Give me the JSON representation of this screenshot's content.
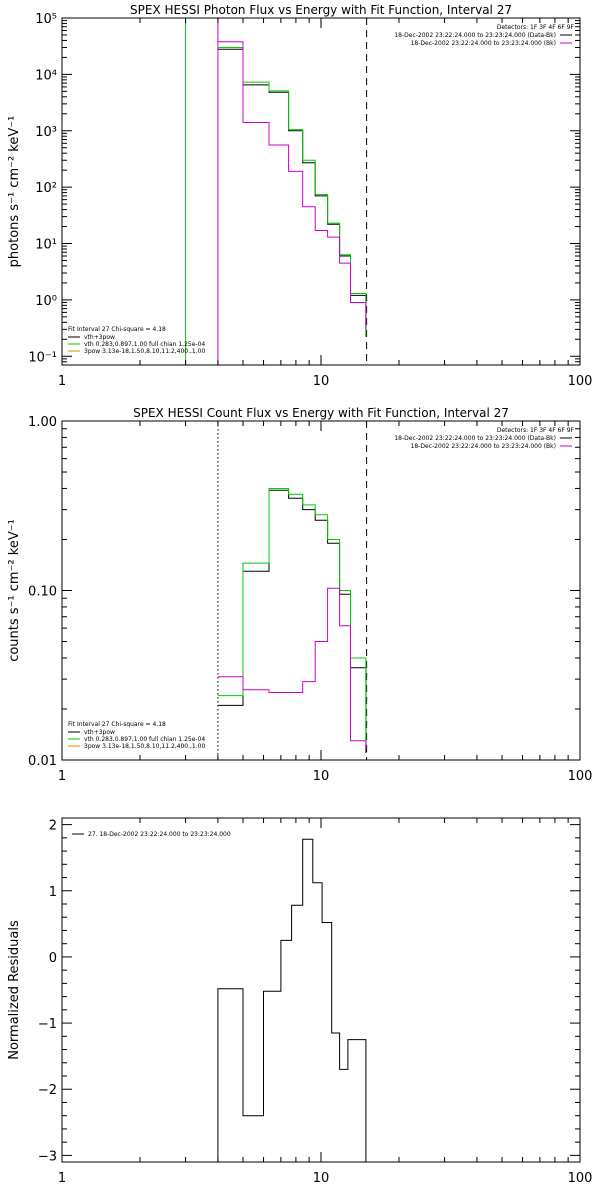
{
  "chart_data": [
    {
      "type": "line",
      "title": "SPEX HESSI Photon Flux vs Energy with Fit Function, Interval 27",
      "xlabel": "",
      "ylabel": "photons s⁻¹ cm⁻² keV⁻¹",
      "xscale": "log",
      "yscale": "log",
      "xlim": [
        1,
        100
      ],
      "ylim": [
        0.07,
        100000
      ],
      "x_ticks": [
        {
          "v": 1,
          "label": "1"
        },
        {
          "v": 10,
          "label": "10"
        },
        {
          "v": 100,
          "label": "100"
        }
      ],
      "y_ticks": [
        {
          "v": 0.1,
          "label": "10⁻¹"
        },
        {
          "v": 1,
          "label": "10⁰"
        },
        {
          "v": 10,
          "label": "10¹"
        },
        {
          "v": 100,
          "label": "10²"
        },
        {
          "v": 1000,
          "label": "10³"
        },
        {
          "v": 10000,
          "label": "10⁴"
        },
        {
          "v": 100000,
          "label": "10⁵"
        }
      ],
      "edges": [
        4.0,
        5.0,
        6.3,
        7.5,
        8.5,
        9.5,
        10.6,
        11.8,
        13.0,
        14.9
      ],
      "series": [
        {
          "name": "vth+3pow",
          "color": "#000000",
          "values": [
            28000,
            6500,
            4800,
            1000,
            270,
            70,
            22,
            6,
            1.2
          ]
        },
        {
          "name": "vth 0.283,0.897,1.00 full chian 1.25e-04",
          "color": "#00cc00",
          "values": [
            30000,
            7300,
            5100,
            1050,
            300,
            74,
            23,
            6.3,
            1.3
          ]
        },
        {
          "name": "3pow",
          "color": "#cc00cc",
          "values": [
            38000,
            1400,
            560,
            190,
            45,
            17,
            13,
            4.5,
            0.9
          ]
        }
      ],
      "tail_points": [
        {
          "series": 0,
          "value": 0.22
        },
        {
          "series": 1,
          "value": 0.22
        },
        {
          "series": 2,
          "value": 0.3
        }
      ],
      "vlines": [
        {
          "x": 3.0,
          "style": "solid",
          "color": "#00cc00"
        },
        {
          "x": 4.0,
          "style": "solid",
          "color": "#cc00cc"
        },
        {
          "x": 15.0,
          "style": "dashed",
          "color": "#000000"
        }
      ],
      "annotations": {
        "detectors": "Detectors: 1F 3F 4F 6F 9F",
        "legend": [
          {
            "text": "18-Dec-2002 23:22:24.000 to 23:23:24.000 (Data-Bk)",
            "color": "#000000"
          },
          {
            "text": "18-Dec-2002 23:22:24.000 to 23:23:24.000 (Bk)",
            "color": "#cc00cc"
          }
        ],
        "fit_header": "Fit Interval 27    Chi-square = 4.18",
        "fit_legend": [
          {
            "text": "vth+3pow",
            "color": "#000000"
          },
          {
            "text": "vth 0.283,0.897,1.00  full chian 1.25e-04",
            "color": "#00cc00"
          },
          {
            "text": "3pow 3.13e-18,1.50,8.10,11.2,400.,1.00",
            "color": "#cc9900"
          }
        ]
      }
    },
    {
      "type": "line",
      "title": "SPEX HESSI Count Flux vs Energy with Fit Function, Interval 27",
      "xlabel": "",
      "ylabel": "counts s⁻¹ cm⁻² keV⁻¹",
      "xscale": "log",
      "yscale": "log",
      "xlim": [
        1,
        100
      ],
      "ylim": [
        0.01,
        1.0
      ],
      "x_ticks": [
        {
          "v": 1,
          "label": "1"
        },
        {
          "v": 10,
          "label": "10"
        },
        {
          "v": 100,
          "label": "100"
        }
      ],
      "y_ticks": [
        {
          "v": 0.01,
          "label": "0.01"
        },
        {
          "v": 0.1,
          "label": "0.10"
        },
        {
          "v": 1.0,
          "label": "1.00"
        }
      ],
      "edges": [
        4.0,
        5.0,
        6.3,
        7.5,
        8.5,
        9.5,
        10.6,
        11.8,
        13.0,
        14.9
      ],
      "series": [
        {
          "name": "Data-Bk",
          "color": "#000000",
          "values": [
            0.021,
            0.13,
            0.39,
            0.35,
            0.3,
            0.26,
            0.19,
            0.095,
            0.035
          ]
        },
        {
          "name": "vth+3pow",
          "color": "#00cc00",
          "values": [
            0.024,
            0.145,
            0.4,
            0.37,
            0.32,
            0.28,
            0.2,
            0.1,
            0.04
          ]
        },
        {
          "name": "Bk",
          "color": "#cc00cc",
          "values": [
            0.031,
            0.026,
            0.025,
            0.025,
            0.029,
            0.05,
            0.103,
            0.062,
            0.013
          ]
        }
      ],
      "tail_points": [
        {
          "series": 0,
          "value": 0.011
        },
        {
          "series": 1,
          "value": 0.012
        },
        {
          "series": 2,
          "value": 0.0115
        }
      ],
      "vlines": [
        {
          "x": 4.0,
          "style": "dotted",
          "color": "#000000"
        },
        {
          "x": 15.0,
          "style": "dashed",
          "color": "#000000"
        }
      ],
      "annotations": {
        "detectors": "Detectors: 1F 3F 4F 6F 9F",
        "legend": [
          {
            "text": "18-Dec-2002 23:22:24.000 to 23:23:24.000 (Data-Bk)",
            "color": "#000000"
          },
          {
            "text": "18-Dec-2002 23:22:24.000 to 23:23:24.000 (Bk)",
            "color": "#cc00cc"
          }
        ],
        "fit_header": "Fit Interval 27    Chi-square = 4.18",
        "fit_legend": [
          {
            "text": "vth+3pow",
            "color": "#000000"
          },
          {
            "text": "vth 0.283,0.897,1.00  full chian 1.25e-04",
            "color": "#00cc00"
          },
          {
            "text": "3pow 3.13e-18,1.50,8.10,11.2,400.,1.00",
            "color": "#cc9900"
          }
        ]
      }
    },
    {
      "type": "line",
      "title": "",
      "xlabel": "",
      "ylabel": "Normalized Residuals",
      "xscale": "log",
      "yscale": "linear",
      "xlim": [
        1,
        100
      ],
      "ylim": [
        -3.1,
        2.1
      ],
      "x_ticks": [
        {
          "v": 1,
          "label": "1"
        },
        {
          "v": 10,
          "label": "10"
        },
        {
          "v": 100,
          "label": "100"
        }
      ],
      "y_ticks": [
        {
          "v": -3,
          "label": "−3"
        },
        {
          "v": -2,
          "label": "−2"
        },
        {
          "v": -1,
          "label": "−1"
        },
        {
          "v": 0,
          "label": "0"
        },
        {
          "v": 1,
          "label": "1"
        },
        {
          "v": 2,
          "label": "2"
        }
      ],
      "edges": [
        4.0,
        5.0,
        6.0,
        7.0,
        7.7,
        8.5,
        9.3,
        10.1,
        11.0,
        11.8,
        12.7,
        13.6,
        14.9
      ],
      "series": [
        {
          "name": "27. 18-Dec-2002 23:22:24.000 to 23:23:24.000",
          "color": "#000000",
          "values": [
            -0.48,
            -2.4,
            -0.52,
            0.25,
            0.78,
            1.78,
            1.12,
            0.52,
            -1.15,
            -1.7,
            -1.25,
            -1.25
          ]
        }
      ],
      "residual_baseline": -3.1,
      "tail_points": [],
      "vlines": [],
      "annotations": {
        "detectors": "",
        "legend": [
          {
            "text": "27. 18-Dec-2002 23:22:24.000 to 23:23:24.000",
            "color": "#000000"
          }
        ],
        "fit_header": "",
        "fit_legend": []
      }
    }
  ]
}
